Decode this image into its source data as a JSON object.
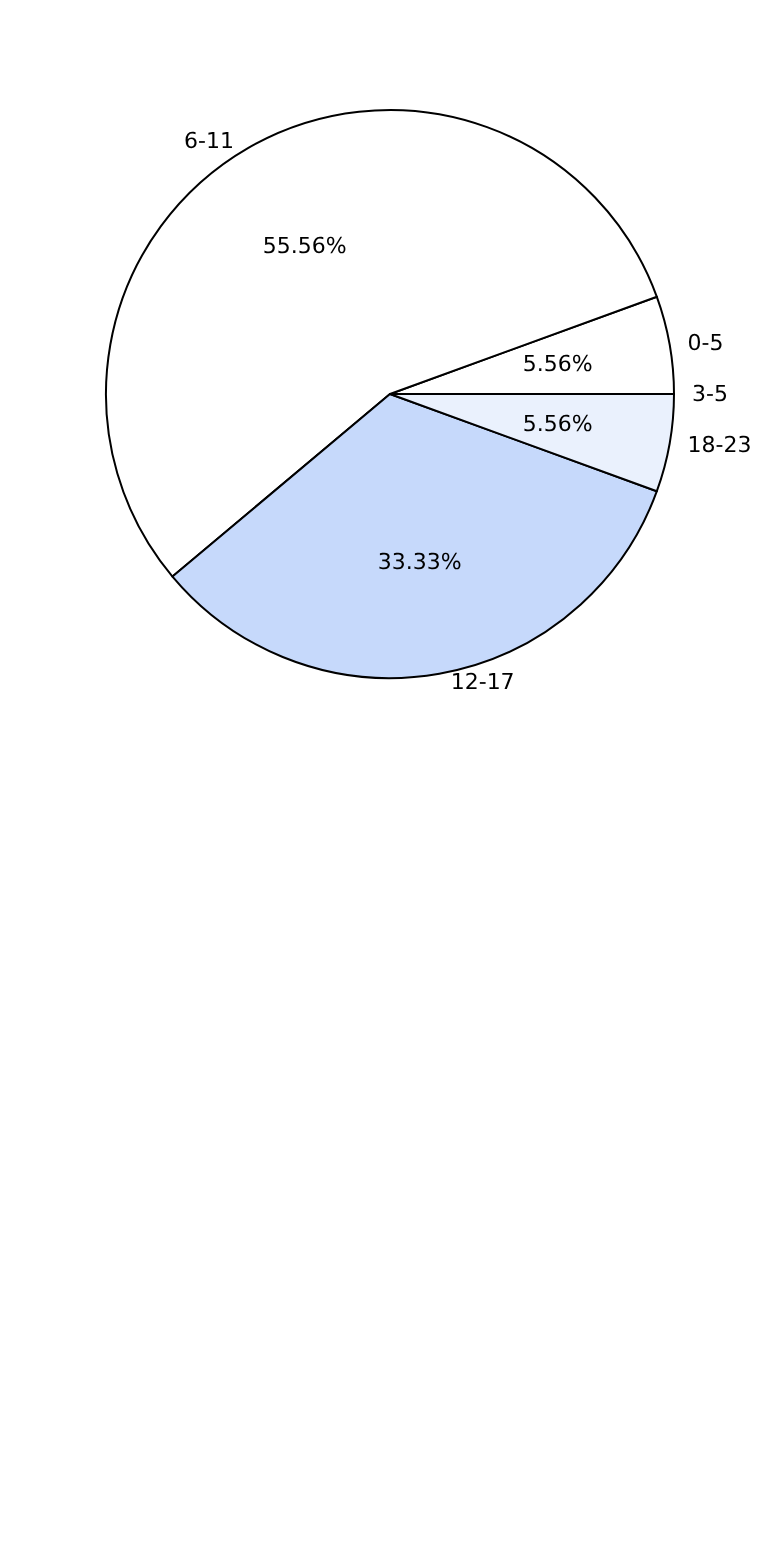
{
  "chart_data": {
    "type": "pie",
    "categories": [
      "0-5",
      "6-11",
      "12-17",
      "18-23",
      "3-5"
    ],
    "values": [
      5.56,
      55.56,
      33.33,
      5.56,
      0
    ],
    "colors": [
      "#ffffff",
      "#ffffff",
      "#c6d9fb",
      "#eaf1fd",
      "#eaf1fd"
    ],
    "value_labels": [
      "5.56%",
      "55.56%",
      "33.33%",
      "5.56%",
      null
    ],
    "legend": false
  }
}
